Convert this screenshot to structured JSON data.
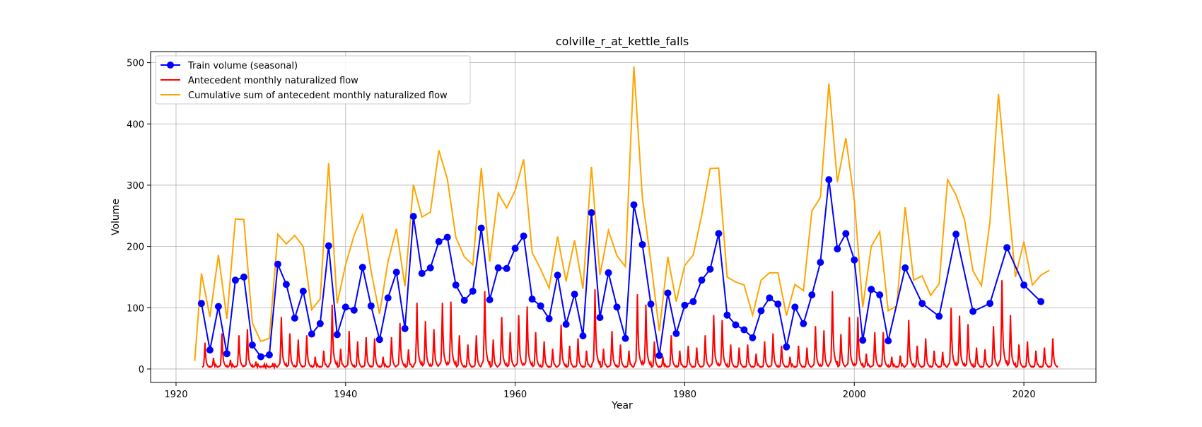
{
  "chart_data": {
    "type": "line",
    "title": "colville_r_at_kettle_falls",
    "xlabel": "Year",
    "ylabel": "Volume",
    "xlim": [
      1917,
      2028.5
    ],
    "ylim": [
      -22,
      518
    ],
    "xticks": [
      1920,
      1940,
      1960,
      1980,
      2000,
      2020
    ],
    "yticks": [
      0,
      100,
      200,
      300,
      400,
      500
    ],
    "grid": true,
    "legend_position": "top-left",
    "series": [
      {
        "name": "Train volume (seasonal)",
        "color": "#0000ff",
        "style": "line-markers",
        "x": [
          1923,
          1924,
          1925,
          1926,
          1927,
          1928,
          1929,
          1930,
          1931,
          1932,
          1933,
          1934,
          1935,
          1936,
          1937,
          1938,
          1939,
          1940,
          1941,
          1942,
          1943,
          1944,
          1945,
          1946,
          1947,
          1948,
          1949,
          1950,
          1951,
          1952,
          1953,
          1954,
          1955,
          1956,
          1957,
          1958,
          1959,
          1960,
          1961,
          1962,
          1963,
          1964,
          1965,
          1966,
          1967,
          1968,
          1969,
          1970,
          1971,
          1972,
          1973,
          1974,
          1975,
          1976,
          1977,
          1978,
          1979,
          1980,
          1981,
          1982,
          1983,
          1984,
          1985,
          1986,
          1987,
          1988,
          1989,
          1990,
          1991,
          1992,
          1993,
          1994,
          1995,
          1996,
          1997,
          1998,
          1999,
          2000,
          2001,
          2002,
          2003,
          2004,
          2006,
          2008,
          2010,
          2012,
          2014,
          2016,
          2018,
          2020,
          2022
        ],
        "y": [
          107,
          31,
          102,
          25,
          145,
          150,
          39,
          20,
          23,
          171,
          138,
          83,
          127,
          57,
          74,
          201,
          56,
          101,
          96,
          166,
          103,
          48,
          116,
          158,
          66,
          249,
          156,
          165,
          208,
          215,
          137,
          112,
          127,
          230,
          113,
          165,
          164,
          197,
          217,
          114,
          103,
          82,
          153,
          73,
          122,
          54,
          255,
          84,
          157,
          101,
          50,
          268,
          203,
          106,
          22,
          124,
          58,
          104,
          110,
          145,
          163,
          221,
          88,
          72,
          64,
          51,
          95,
          116,
          106,
          36,
          101,
          74,
          121,
          174,
          309,
          196,
          221,
          178,
          47,
          130,
          121,
          46,
          165,
          107,
          86,
          220,
          94,
          107,
          198,
          137,
          110
        ]
      },
      {
        "name": "Antecedent monthly naturalized flow",
        "color": "#ff0000",
        "style": "line",
        "peaks": [
          [
            1923,
            43
          ],
          [
            1924,
            18
          ],
          [
            1925,
            58
          ],
          [
            1926,
            15
          ],
          [
            1927,
            55
          ],
          [
            1928,
            65
          ],
          [
            1929,
            12
          ],
          [
            1930,
            8
          ],
          [
            1931,
            10
          ],
          [
            1932,
            85
          ],
          [
            1933,
            58
          ],
          [
            1934,
            48
          ],
          [
            1935,
            55
          ],
          [
            1936,
            20
          ],
          [
            1937,
            30
          ],
          [
            1938,
            105
          ],
          [
            1939,
            33
          ],
          [
            1940,
            62
          ],
          [
            1941,
            45
          ],
          [
            1942,
            52
          ],
          [
            1943,
            50
          ],
          [
            1944,
            20
          ],
          [
            1945,
            52
          ],
          [
            1946,
            75
          ],
          [
            1947,
            32
          ],
          [
            1948,
            108
          ],
          [
            1949,
            78
          ],
          [
            1950,
            65
          ],
          [
            1951,
            108
          ],
          [
            1952,
            110
          ],
          [
            1953,
            55
          ],
          [
            1954,
            40
          ],
          [
            1955,
            55
          ],
          [
            1956,
            127
          ],
          [
            1957,
            48
          ],
          [
            1958,
            85
          ],
          [
            1959,
            60
          ],
          [
            1960,
            88
          ],
          [
            1961,
            102
          ],
          [
            1962,
            60
          ],
          [
            1963,
            45
          ],
          [
            1964,
            33
          ],
          [
            1965,
            72
          ],
          [
            1966,
            38
          ],
          [
            1967,
            50
          ],
          [
            1968,
            30
          ],
          [
            1969,
            130
          ],
          [
            1970,
            33
          ],
          [
            1971,
            62
          ],
          [
            1972,
            40
          ],
          [
            1973,
            30
          ],
          [
            1974,
            122
          ],
          [
            1975,
            105
          ],
          [
            1976,
            45
          ],
          [
            1977,
            20
          ],
          [
            1978,
            55
          ],
          [
            1979,
            30
          ],
          [
            1980,
            38
          ],
          [
            1981,
            35
          ],
          [
            1982,
            55
          ],
          [
            1983,
            88
          ],
          [
            1984,
            80
          ],
          [
            1985,
            40
          ],
          [
            1986,
            35
          ],
          [
            1987,
            40
          ],
          [
            1988,
            25
          ],
          [
            1989,
            45
          ],
          [
            1990,
            58
          ],
          [
            1991,
            38
          ],
          [
            1992,
            20
          ],
          [
            1993,
            38
          ],
          [
            1994,
            35
          ],
          [
            1995,
            70
          ],
          [
            1996,
            63
          ],
          [
            1997,
            127
          ],
          [
            1998,
            57
          ],
          [
            1999,
            85
          ],
          [
            2000,
            85
          ],
          [
            2001,
            25
          ],
          [
            2002,
            60
          ],
          [
            2003,
            60
          ],
          [
            2004,
            20
          ],
          [
            2005,
            22
          ],
          [
            2006,
            80
          ],
          [
            2007,
            38
          ],
          [
            2008,
            50
          ],
          [
            2009,
            30
          ],
          [
            2010,
            28
          ],
          [
            2011,
            100
          ],
          [
            2012,
            87
          ],
          [
            2013,
            73
          ],
          [
            2014,
            35
          ],
          [
            2015,
            32
          ],
          [
            2016,
            70
          ],
          [
            2017,
            145
          ],
          [
            2018,
            88
          ],
          [
            2019,
            40
          ],
          [
            2020,
            45
          ],
          [
            2021,
            30
          ],
          [
            2022,
            35
          ],
          [
            2023,
            50
          ]
        ]
      },
      {
        "name": "Cumulative sum of antecedent monthly naturalized flow",
        "color": "#ffa500",
        "style": "line",
        "x": [
          1922.2,
          1923,
          1924,
          1925,
          1926,
          1927,
          1928,
          1929,
          1930,
          1931,
          1932,
          1933,
          1934,
          1935,
          1936,
          1937,
          1938,
          1939,
          1940,
          1941,
          1942,
          1943,
          1944,
          1945,
          1946,
          1947,
          1948,
          1949,
          1950,
          1951,
          1952,
          1953,
          1954,
          1955,
          1956,
          1957,
          1958,
          1959,
          1960,
          1961,
          1962,
          1963,
          1964,
          1965,
          1966,
          1967,
          1968,
          1969,
          1970,
          1971,
          1972,
          1973,
          1974,
          1975,
          1976,
          1977,
          1978,
          1979,
          1980,
          1981,
          1982,
          1983,
          1984,
          1985,
          1986,
          1987,
          1988,
          1989,
          1990,
          1991,
          1992,
          1993,
          1994,
          1995,
          1996,
          1997,
          1998,
          1999,
          2000,
          2001,
          2002,
          2003,
          2004,
          2005,
          2006,
          2007,
          2008,
          2009,
          2010,
          2011,
          2012,
          2013,
          2014,
          2015,
          2016,
          2017,
          2018,
          2019,
          2020,
          2021,
          2022,
          2023
        ],
        "y": [
          13,
          156,
          85,
          186,
          82,
          245,
          244,
          75,
          45,
          50,
          220,
          204,
          218,
          200,
          97,
          114,
          336,
          107,
          170,
          218,
          251,
          160,
          90,
          175,
          229,
          135,
          301,
          248,
          256,
          357,
          310,
          215,
          183,
          170,
          328,
          175,
          287,
          263,
          291,
          342,
          190,
          163,
          132,
          216,
          143,
          210,
          131,
          330,
          153,
          226,
          185,
          167,
          494,
          280,
          175,
          62,
          183,
          110,
          169,
          186,
          251,
          327,
          328,
          150,
          142,
          137,
          88,
          145,
          157,
          157,
          87,
          138,
          128,
          258,
          280,
          466,
          305,
          377,
          275,
          101,
          200,
          224,
          95,
          103,
          264,
          145,
          152,
          120,
          139,
          309,
          284,
          244,
          160,
          136,
          240,
          449,
          300,
          150,
          208,
          137,
          153,
          161
        ]
      }
    ]
  }
}
